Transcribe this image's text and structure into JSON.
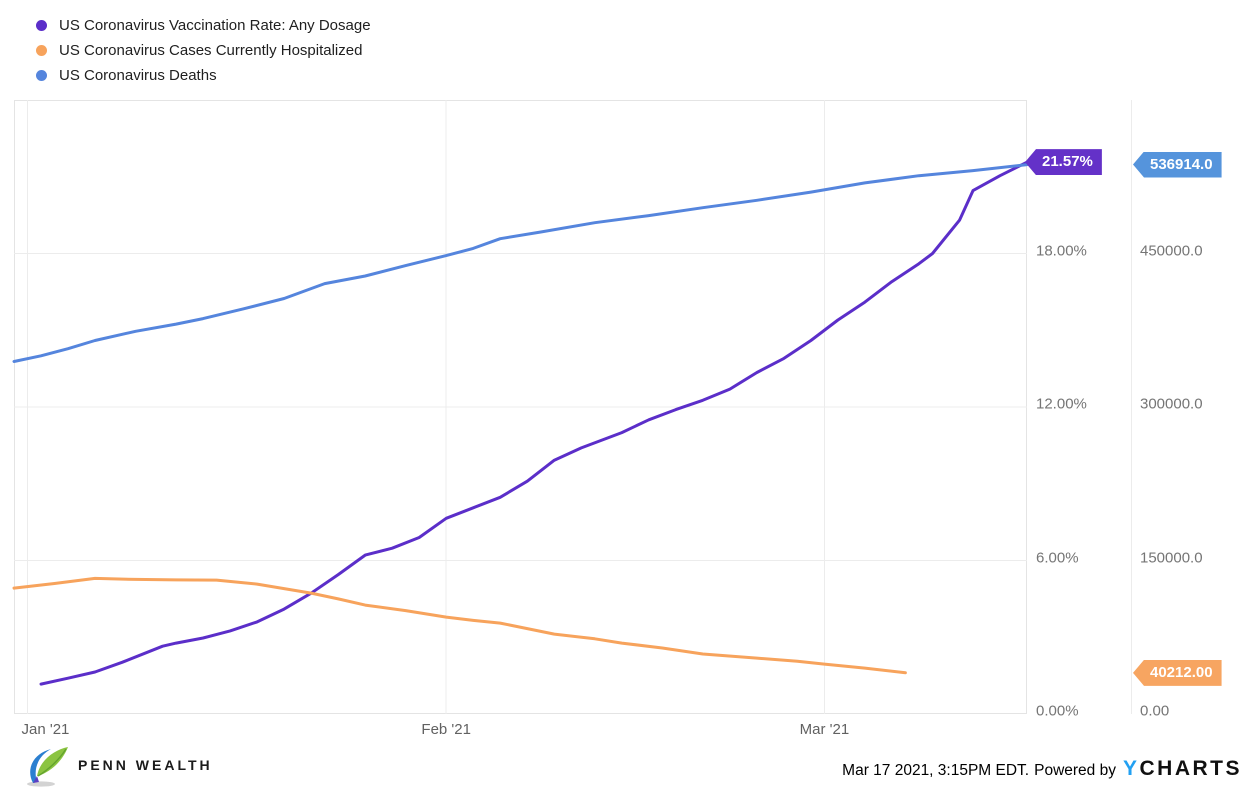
{
  "legend": {
    "items": [
      {
        "label": "US Coronavirus Vaccination Rate: Any Dosage",
        "color": "#5B2EC9"
      },
      {
        "label": "US Coronavirus Cases Currently Hospitalized",
        "color": "#F7A35C"
      },
      {
        "label": "US Coronavirus Deaths",
        "color": "#5585DD"
      }
    ]
  },
  "chart_data": {
    "type": "line",
    "grid": true,
    "legend_position": "top-left",
    "x_axis": {
      "start": "2020-12-31",
      "end": "2021-03-16",
      "ticks": [
        {
          "date": "2021-01-01",
          "label": "Jan '21",
          "first": true
        },
        {
          "date": "2021-02-01",
          "label": "Feb '21"
        },
        {
          "date": "2021-03-01",
          "label": "Mar '21"
        }
      ]
    },
    "axes": {
      "percent": {
        "min": 0,
        "max": 24,
        "ticks": [
          {
            "v": 18,
            "label": "18.00%"
          },
          {
            "v": 12,
            "label": "12.00%"
          },
          {
            "v": 6,
            "label": "6.00%"
          },
          {
            "v": 0,
            "label": "0.00%"
          }
        ]
      },
      "count": {
        "min": 0,
        "max": 600000,
        "ticks": [
          {
            "v": 450000,
            "label": "450000.0"
          },
          {
            "v": 300000,
            "label": "300000.0"
          },
          {
            "v": 150000,
            "label": "150000.0"
          },
          {
            "v": 0,
            "label": "0.00"
          }
        ]
      }
    },
    "series": [
      {
        "name": "US Coronavirus Vaccination Rate: Any Dosage",
        "slug": "vaccination-rate",
        "axis": "percent",
        "color": "#5B2EC9",
        "points": [
          [
            "2021-01-02",
            1.17
          ],
          [
            "2021-01-04",
            1.4
          ],
          [
            "2021-01-06",
            1.64
          ],
          [
            "2021-01-08",
            2.02
          ],
          [
            "2021-01-11",
            2.65
          ],
          [
            "2021-01-12",
            2.77
          ],
          [
            "2021-01-14",
            2.97
          ],
          [
            "2021-01-16",
            3.25
          ],
          [
            "2021-01-18",
            3.6
          ],
          [
            "2021-01-20",
            4.1
          ],
          [
            "2021-01-22",
            4.72
          ],
          [
            "2021-01-24",
            5.45
          ],
          [
            "2021-01-26",
            6.21
          ],
          [
            "2021-01-28",
            6.48
          ],
          [
            "2021-01-30",
            6.9
          ],
          [
            "2021-02-01",
            7.65
          ],
          [
            "2021-02-03",
            8.06
          ],
          [
            "2021-02-05",
            8.47
          ],
          [
            "2021-02-07",
            9.1
          ],
          [
            "2021-02-09",
            9.92
          ],
          [
            "2021-02-11",
            10.4
          ],
          [
            "2021-02-14",
            11.0
          ],
          [
            "2021-02-16",
            11.5
          ],
          [
            "2021-02-18",
            11.9
          ],
          [
            "2021-02-20",
            12.26
          ],
          [
            "2021-02-22",
            12.7
          ],
          [
            "2021-02-24",
            13.35
          ],
          [
            "2021-02-26",
            13.9
          ],
          [
            "2021-02-28",
            14.6
          ],
          [
            "2021-03-02",
            15.4
          ],
          [
            "2021-03-04",
            16.1
          ],
          [
            "2021-03-06",
            16.9
          ],
          [
            "2021-03-08",
            17.6
          ],
          [
            "2021-03-09",
            18.0
          ],
          [
            "2021-03-11",
            19.3
          ],
          [
            "2021-03-12",
            20.46
          ],
          [
            "2021-03-14",
            21.04
          ],
          [
            "2021-03-16",
            21.57
          ]
        ]
      },
      {
        "name": "US Coronavirus Cases Currently Hospitalized",
        "slug": "hospitalized",
        "axis": "count",
        "color": "#F7A35C",
        "points": [
          [
            "2020-12-31",
            123000
          ],
          [
            "2021-01-03",
            127500
          ],
          [
            "2021-01-06",
            132500
          ],
          [
            "2021-01-09",
            131500
          ],
          [
            "2021-01-12",
            131000
          ],
          [
            "2021-01-15",
            130800
          ],
          [
            "2021-01-18",
            126900
          ],
          [
            "2021-01-20",
            122500
          ],
          [
            "2021-01-22",
            118100
          ],
          [
            "2021-01-24",
            112500
          ],
          [
            "2021-01-26",
            106400
          ],
          [
            "2021-01-29",
            101000
          ],
          [
            "2021-02-01",
            94700
          ],
          [
            "2021-02-03",
            91500
          ],
          [
            "2021-02-05",
            88800
          ],
          [
            "2021-02-07",
            83500
          ],
          [
            "2021-02-09",
            78100
          ],
          [
            "2021-02-12",
            73500
          ],
          [
            "2021-02-14",
            69300
          ],
          [
            "2021-02-17",
            64500
          ],
          [
            "2021-02-20",
            58600
          ],
          [
            "2021-02-24",
            54600
          ],
          [
            "2021-02-27",
            51500
          ],
          [
            "2021-03-01",
            48800
          ],
          [
            "2021-03-04",
            44900
          ],
          [
            "2021-03-07",
            40212
          ]
        ]
      },
      {
        "name": "US Coronavirus Deaths",
        "slug": "deaths",
        "axis": "count",
        "color": "#5585DD",
        "points": [
          [
            "2020-12-31",
            344500
          ],
          [
            "2021-01-02",
            350000
          ],
          [
            "2021-01-04",
            357000
          ],
          [
            "2021-01-06",
            365000
          ],
          [
            "2021-01-09",
            374000
          ],
          [
            "2021-01-12",
            381000
          ],
          [
            "2021-01-14",
            386400
          ],
          [
            "2021-01-17",
            396000
          ],
          [
            "2021-01-20",
            406000
          ],
          [
            "2021-01-23",
            420600
          ],
          [
            "2021-01-26",
            428000
          ],
          [
            "2021-01-29",
            438200
          ],
          [
            "2021-02-01",
            447900
          ],
          [
            "2021-02-03",
            455000
          ],
          [
            "2021-02-05",
            464500
          ],
          [
            "2021-02-08",
            471000
          ],
          [
            "2021-02-12",
            480100
          ],
          [
            "2021-02-16",
            487000
          ],
          [
            "2021-02-20",
            494800
          ],
          [
            "2021-02-24",
            502000
          ],
          [
            "2021-02-28",
            510000
          ],
          [
            "2021-03-04",
            519000
          ],
          [
            "2021-03-08",
            526000
          ],
          [
            "2021-03-12",
            531000
          ],
          [
            "2021-03-16",
            536914
          ]
        ]
      }
    ]
  },
  "badges": [
    {
      "label": "21.57%",
      "value": 21.57,
      "axis": "percent",
      "col": 1,
      "color": "#6431C8",
      "series": "vaccination-rate"
    },
    {
      "label": "536914.0",
      "value": 536914,
      "axis": "count",
      "col": 2,
      "color": "#5594DC",
      "series": "deaths"
    },
    {
      "label": "40212.00",
      "value": 40212,
      "axis": "count",
      "col": 2,
      "color": "#F7A561",
      "series": "hospitalized"
    }
  ],
  "footer": {
    "brand": "PENN WEALTH",
    "timestamp": "Mar 17 2021, 3:15PM EDT.",
    "powered_by": "Powered by",
    "ycharts_y": "Y",
    "ycharts_rest": "CHARTS"
  }
}
